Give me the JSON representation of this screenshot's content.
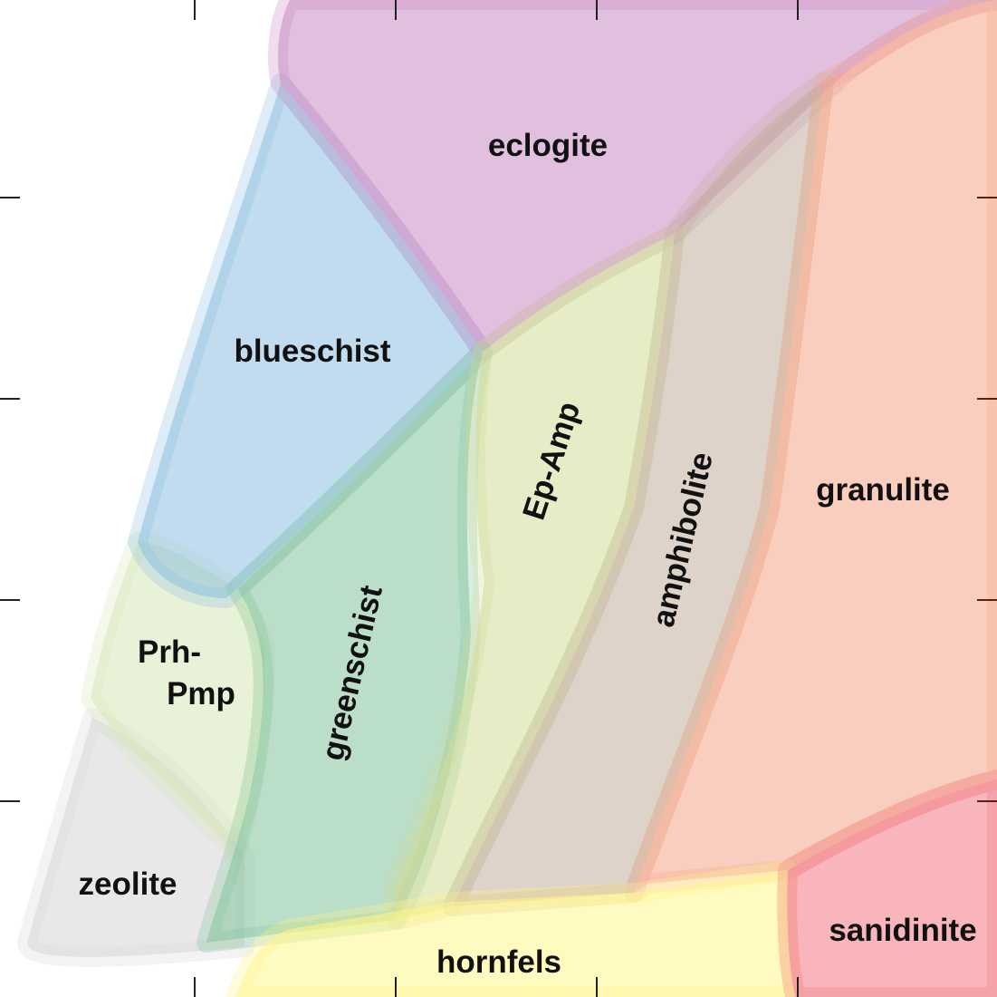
{
  "diagram": {
    "facies": [
      {
        "id": "eclogite",
        "label": "eclogite",
        "color": "#c98ac4"
      },
      {
        "id": "blueschist",
        "label": "blueschist",
        "color": "#8ec0e0"
      },
      {
        "id": "greenschist",
        "label": "greenschist",
        "color": "#84c29c"
      },
      {
        "id": "ep-amp",
        "label": "Ep-Amp",
        "color": "#d2dc98"
      },
      {
        "id": "amphibolite",
        "label": "amphibolite",
        "color": "#c3ae9c"
      },
      {
        "id": "granulite",
        "label": "granulite",
        "color": "#f6a688"
      },
      {
        "id": "prh-pmp",
        "label_line1": "Prh-",
        "label_line2": "Pmp",
        "color": "#d6e8b8"
      },
      {
        "id": "zeolite",
        "label": "zeolite",
        "color": "#d6d6d6"
      },
      {
        "id": "hornfels",
        "label": "hornfels",
        "color": "#fff58a"
      },
      {
        "id": "sanidinite",
        "label": "sanidinite",
        "color": "#f37884"
      }
    ]
  }
}
